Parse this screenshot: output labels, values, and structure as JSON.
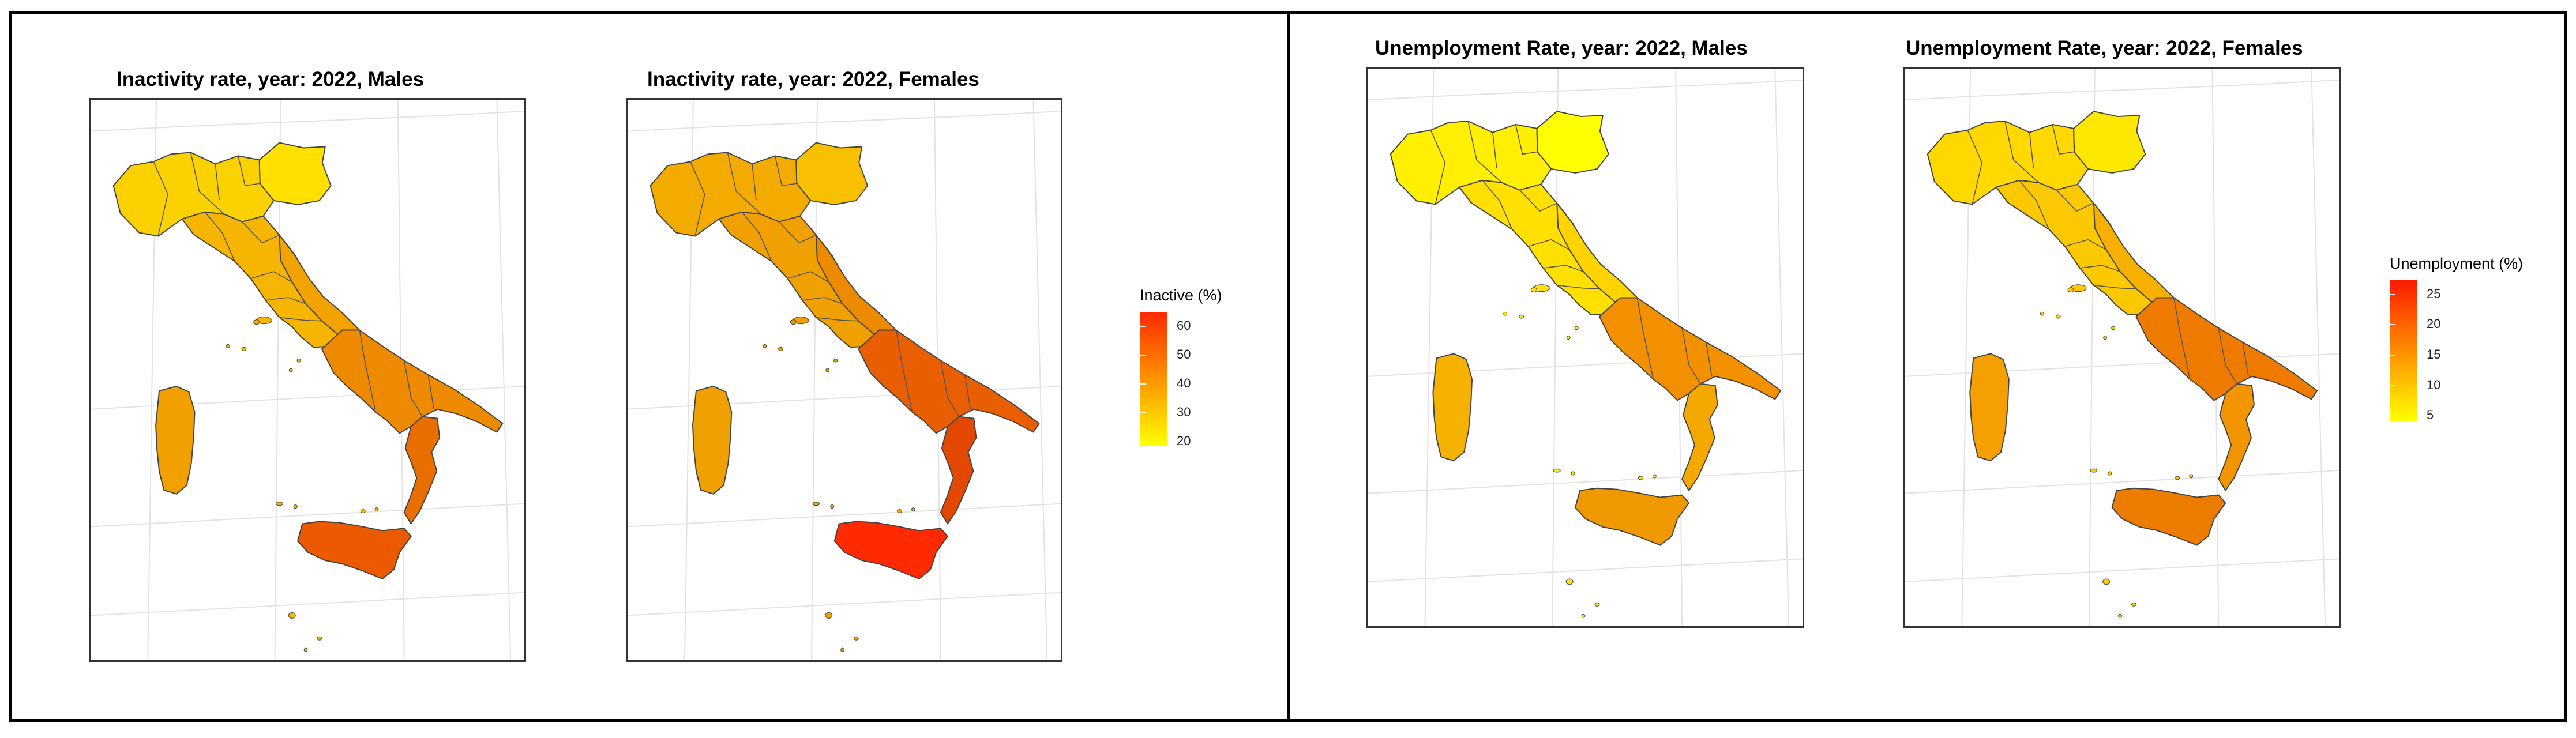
{
  "figure": {
    "left_panel": {
      "maps": [
        {
          "id": "inactivity-males",
          "title": "Inactivity rate, year: 2022, Males"
        },
        {
          "id": "inactivity-females",
          "title": "Inactivity rate, year: 2022, Females"
        }
      ],
      "legend": {
        "title": "Inactive (%)",
        "ticks": [
          "60",
          "50",
          "40",
          "30",
          "20"
        ],
        "colors": [
          "#ffff00",
          "#ff2a00"
        ]
      }
    },
    "right_panel": {
      "maps": [
        {
          "id": "unemployment-males",
          "title": "Unemployment Rate, year: 2022, Males"
        },
        {
          "id": "unemployment-females",
          "title": "Unemployment Rate, year: 2022, Females"
        }
      ],
      "legend": {
        "title": "Unemployment (%)",
        "ticks": [
          "25",
          "20",
          "15",
          "10",
          "5"
        ],
        "colors": [
          "#ffff00",
          "#ff1a00"
        ]
      }
    }
  },
  "map_colors": {
    "inactivity-males": {
      "north": "#ffe000",
      "northwest": "#fcd100",
      "center": "#f6b500",
      "adriatic": "#f2a300",
      "south": "#ee8a00",
      "deep_south": "#e86e00",
      "sicily": "#ec5a00",
      "sardinia": "#f2a000"
    },
    "inactivity-females": {
      "north": "#f8c000",
      "northwest": "#f4ab00",
      "center": "#f0a000",
      "adriatic": "#ec8a00",
      "south": "#e85e00",
      "deep_south": "#e44800",
      "sicily": "#ff2a00",
      "sardinia": "#f0a000"
    },
    "unemployment-males": {
      "north": "#ffff00",
      "northwest": "#ffef00",
      "center": "#ffe000",
      "adriatic": "#ffd400",
      "south": "#f29000",
      "deep_south": "#f5a800",
      "sicily": "#ef9800",
      "sardinia": "#f6b200"
    },
    "unemployment-females": {
      "north": "#ffe800",
      "northwest": "#ffd800",
      "center": "#fcc800",
      "adriatic": "#f8b000",
      "south": "#ef7a00",
      "deep_south": "#f39500",
      "sicily": "#ec7c00",
      "sardinia": "#f5a000"
    }
  }
}
